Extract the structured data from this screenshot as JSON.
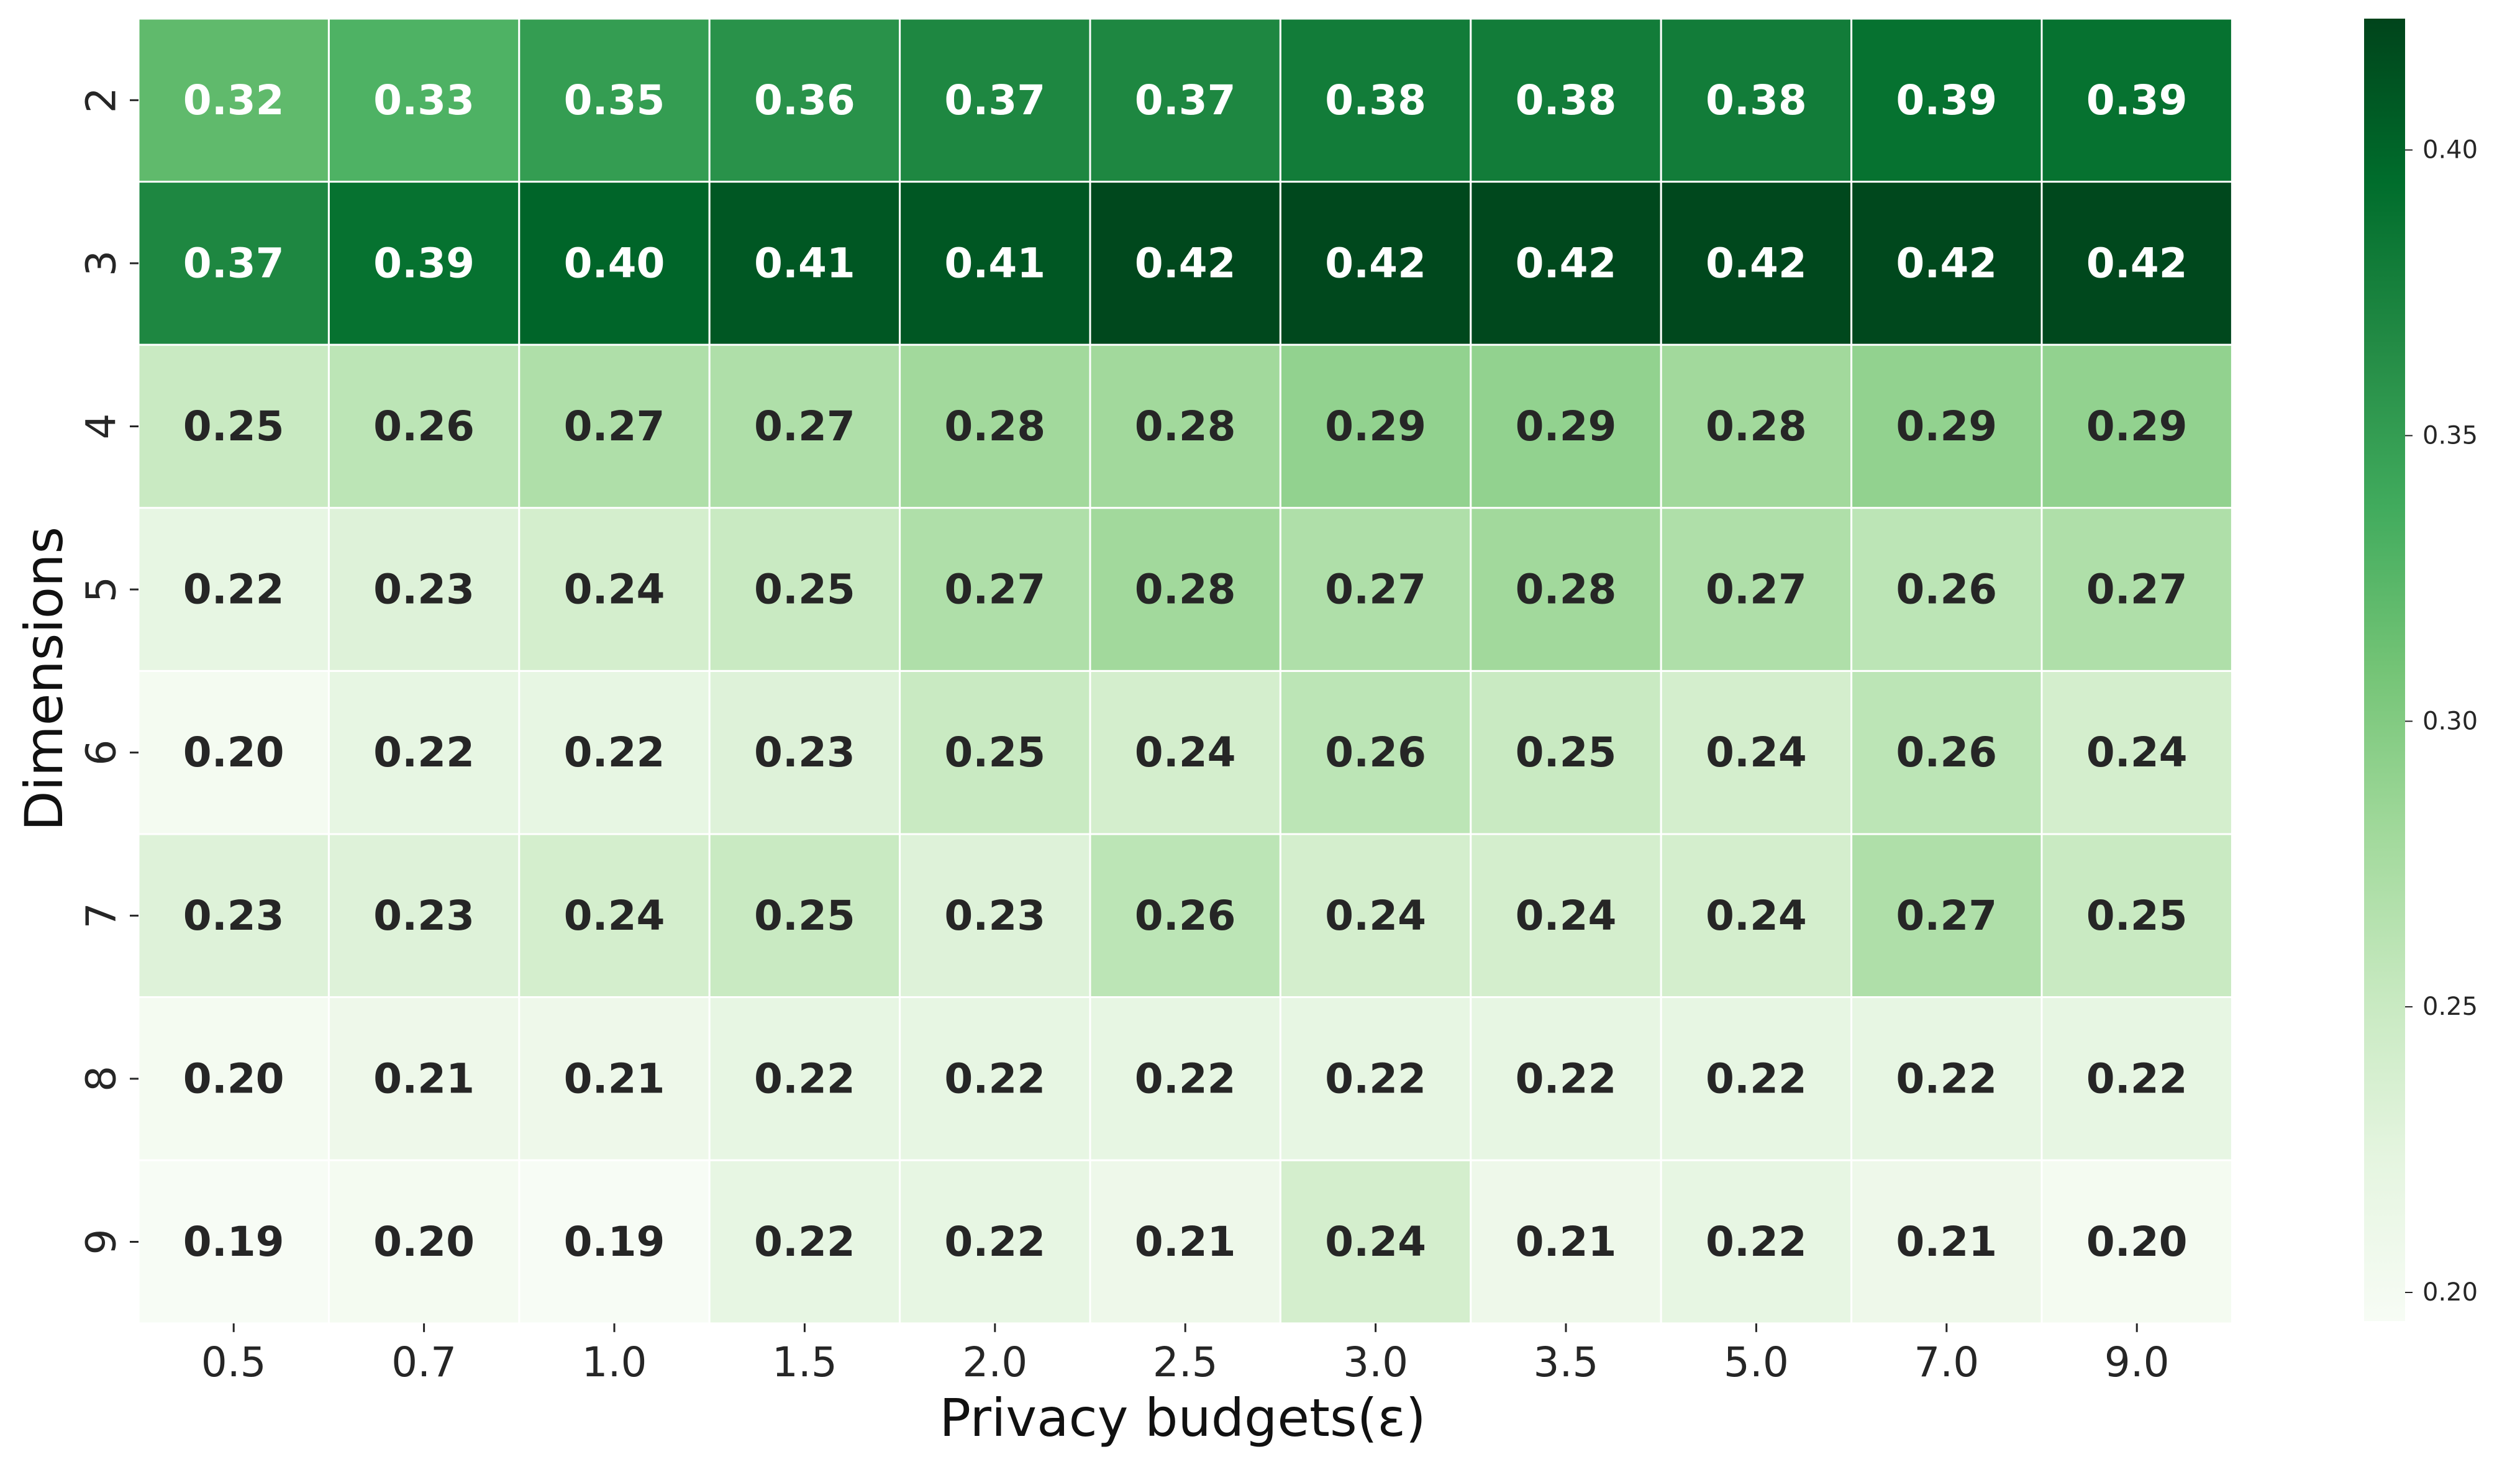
{
  "colors": {
    "colormap": "Greens",
    "low": "#f7fcf5",
    "high": "#00441b",
    "label_dark": "#262626",
    "label_light": "#ffffff"
  },
  "chart_data": {
    "type": "heatmap",
    "title": "",
    "xlabel": "Privacy budgets(ε)",
    "ylabel": "Dimensions",
    "x": [
      "0.5",
      "0.7",
      "1.0",
      "1.5",
      "2.0",
      "2.5",
      "3.0",
      "3.5",
      "5.0",
      "7.0",
      "9.0"
    ],
    "y": [
      "2",
      "3",
      "4",
      "5",
      "6",
      "7",
      "8",
      "9"
    ],
    "values": [
      [
        0.32,
        0.33,
        0.35,
        0.36,
        0.37,
        0.37,
        0.38,
        0.38,
        0.38,
        0.39,
        0.39
      ],
      [
        0.37,
        0.39,
        0.4,
        0.41,
        0.41,
        0.42,
        0.42,
        0.42,
        0.42,
        0.42,
        0.42
      ],
      [
        0.25,
        0.26,
        0.27,
        0.27,
        0.28,
        0.28,
        0.29,
        0.29,
        0.28,
        0.29,
        0.29
      ],
      [
        0.22,
        0.23,
        0.24,
        0.25,
        0.27,
        0.28,
        0.27,
        0.28,
        0.27,
        0.26,
        0.27
      ],
      [
        0.2,
        0.22,
        0.22,
        0.23,
        0.25,
        0.24,
        0.26,
        0.25,
        0.24,
        0.26,
        0.24
      ],
      [
        0.23,
        0.23,
        0.24,
        0.25,
        0.23,
        0.26,
        0.24,
        0.24,
        0.24,
        0.27,
        0.25
      ],
      [
        0.2,
        0.21,
        0.21,
        0.22,
        0.22,
        0.22,
        0.22,
        0.22,
        0.22,
        0.22,
        0.22
      ],
      [
        0.19,
        0.2,
        0.19,
        0.22,
        0.22,
        0.21,
        0.24,
        0.21,
        0.22,
        0.21,
        0.2
      ]
    ],
    "value_format": "2 decimals",
    "colorbar": {
      "vmin": 0.195,
      "vmax": 0.423,
      "ticks": [
        0.2,
        0.25,
        0.3,
        0.35,
        0.4
      ]
    },
    "grid": false,
    "legend": "colorbar right"
  }
}
